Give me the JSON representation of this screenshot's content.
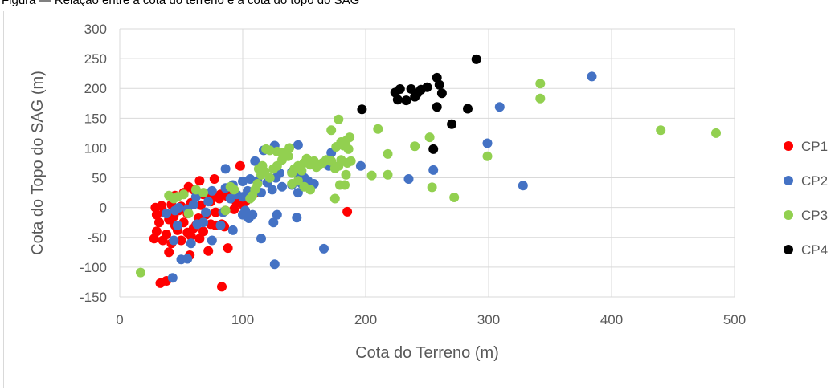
{
  "caption": "Figura — Relação entre a cota do terreno e a cota do topo do SAG",
  "chart_data": {
    "type": "scatter",
    "title": "",
    "xlabel": "Cota do Terreno (m)",
    "ylabel": "Cota do Topo do SAG (m)",
    "xlim": [
      0,
      500
    ],
    "ylim": [
      -150,
      300
    ],
    "xticks": [
      0,
      100,
      200,
      300,
      400,
      500
    ],
    "yticks": [
      -150,
      -100,
      -50,
      0,
      50,
      100,
      150,
      200,
      250,
      300
    ],
    "grid": true,
    "legend_position": "right",
    "series": [
      {
        "name": "CP1",
        "color": "#ff0000",
        "points": [
          [
            33,
            -127
          ],
          [
            38,
            -123
          ],
          [
            83,
            -133
          ],
          [
            40,
            -75
          ],
          [
            57,
            -80
          ],
          [
            72,
            -73
          ],
          [
            88,
            -68
          ],
          [
            28,
            -52
          ],
          [
            35,
            -55
          ],
          [
            42,
            -60
          ],
          [
            50,
            -55
          ],
          [
            58,
            -48
          ],
          [
            65,
            -52
          ],
          [
            78,
            -30
          ],
          [
            83,
            -28
          ],
          [
            47,
            -38
          ],
          [
            55,
            -42
          ],
          [
            38,
            -45
          ],
          [
            30,
            -40
          ],
          [
            45,
            -30
          ],
          [
            60,
            -35
          ],
          [
            68,
            -40
          ],
          [
            32,
            -25
          ],
          [
            40,
            -20
          ],
          [
            52,
            -25
          ],
          [
            62,
            -30
          ],
          [
            74,
            -28
          ],
          [
            85,
            -32
          ],
          [
            30,
            -12
          ],
          [
            36,
            -8
          ],
          [
            44,
            -15
          ],
          [
            48,
            -5
          ],
          [
            55,
            -10
          ],
          [
            64,
            -18
          ],
          [
            70,
            -12
          ],
          [
            78,
            -8
          ],
          [
            86,
            -5
          ],
          [
            93,
            -3
          ],
          [
            29,
            0
          ],
          [
            34,
            3
          ],
          [
            42,
            5
          ],
          [
            50,
            2
          ],
          [
            58,
            8
          ],
          [
            66,
            4
          ],
          [
            74,
            10
          ],
          [
            81,
            15
          ],
          [
            88,
            18
          ],
          [
            95,
            8
          ],
          [
            100,
            5
          ],
          [
            103,
            12
          ],
          [
            45,
            20
          ],
          [
            52,
            25
          ],
          [
            60,
            30
          ],
          [
            68,
            22
          ],
          [
            75,
            18
          ],
          [
            82,
            22
          ],
          [
            90,
            20
          ],
          [
            98,
            12
          ],
          [
            56,
            35
          ],
          [
            65,
            45
          ],
          [
            77,
            48
          ],
          [
            98,
            70
          ],
          [
            110,
            25
          ],
          [
            185,
            -7
          ]
        ]
      },
      {
        "name": "CP2",
        "color": "#4472c4",
        "points": [
          [
            43,
            -118
          ],
          [
            126,
            -95
          ],
          [
            166,
            -69
          ],
          [
            50,
            -87
          ],
          [
            55,
            -86
          ],
          [
            92,
            -38
          ],
          [
            75,
            -55
          ],
          [
            115,
            -52
          ],
          [
            44,
            -55
          ],
          [
            58,
            -60
          ],
          [
            47,
            -30
          ],
          [
            63,
            -28
          ],
          [
            68,
            -25
          ],
          [
            82,
            -30
          ],
          [
            105,
            -18
          ],
          [
            108,
            -12
          ],
          [
            125,
            -25
          ],
          [
            128,
            -12
          ],
          [
            144,
            -17
          ],
          [
            38,
            -10
          ],
          [
            45,
            -5
          ],
          [
            55,
            -3
          ],
          [
            70,
            -8
          ],
          [
            84,
            -8
          ],
          [
            100,
            -12
          ],
          [
            102,
            -5
          ],
          [
            48,
            0
          ],
          [
            60,
            5
          ],
          [
            72,
            10
          ],
          [
            90,
            15
          ],
          [
            95,
            22
          ],
          [
            100,
            18
          ],
          [
            104,
            28
          ],
          [
            115,
            25
          ],
          [
            124,
            30
          ],
          [
            132,
            35
          ],
          [
            140,
            38
          ],
          [
            148,
            40
          ],
          [
            158,
            40
          ],
          [
            62,
            18
          ],
          [
            75,
            28
          ],
          [
            86,
            33
          ],
          [
            92,
            38
          ],
          [
            100,
            44
          ],
          [
            106,
            48
          ],
          [
            112,
            45
          ],
          [
            120,
            42
          ],
          [
            127,
            50
          ],
          [
            130,
            58
          ],
          [
            140,
            60
          ],
          [
            145,
            55
          ],
          [
            150,
            50
          ],
          [
            153,
            45
          ],
          [
            86,
            65
          ],
          [
            110,
            78
          ],
          [
            117,
            96
          ],
          [
            126,
            104
          ],
          [
            145,
            105
          ],
          [
            145,
            25
          ],
          [
            155,
            35
          ],
          [
            170,
            70
          ],
          [
            172,
            92
          ],
          [
            196,
            70
          ],
          [
            235,
            48
          ],
          [
            255,
            63
          ],
          [
            299,
            108
          ],
          [
            309,
            169
          ],
          [
            328,
            37
          ],
          [
            384,
            220
          ]
        ]
      },
      {
        "name": "CP3",
        "color": "#92d050",
        "points": [
          [
            17,
            -109
          ],
          [
            40,
            20
          ],
          [
            44,
            15
          ],
          [
            47,
            18
          ],
          [
            52,
            22
          ],
          [
            56,
            -10
          ],
          [
            62,
            30
          ],
          [
            68,
            25
          ],
          [
            86,
            -5
          ],
          [
            90,
            35
          ],
          [
            93,
            30
          ],
          [
            106,
            15
          ],
          [
            112,
            40
          ],
          [
            115,
            55
          ],
          [
            118,
            60
          ],
          [
            122,
            50
          ],
          [
            125,
            65
          ],
          [
            128,
            70
          ],
          [
            132,
            80
          ],
          [
            135,
            90
          ],
          [
            138,
            100
          ],
          [
            108,
            20
          ],
          [
            110,
            30
          ],
          [
            113,
            65
          ],
          [
            116,
            70
          ],
          [
            119,
            98
          ],
          [
            122,
            96
          ],
          [
            128,
            94
          ],
          [
            133,
            92
          ],
          [
            137,
            86
          ],
          [
            140,
            58
          ],
          [
            142,
            65
          ],
          [
            145,
            70
          ],
          [
            148,
            62
          ],
          [
            150,
            75
          ],
          [
            152,
            82
          ],
          [
            155,
            72
          ],
          [
            158,
            78
          ],
          [
            160,
            68
          ],
          [
            140,
            40
          ],
          [
            145,
            45
          ],
          [
            150,
            35
          ],
          [
            155,
            30
          ],
          [
            162,
            72
          ],
          [
            165,
            75
          ],
          [
            168,
            80
          ],
          [
            172,
            78
          ],
          [
            175,
            66
          ],
          [
            178,
            70
          ],
          [
            180,
            80
          ],
          [
            172,
            130
          ],
          [
            178,
            148
          ],
          [
            180,
            110
          ],
          [
            184,
            112
          ],
          [
            187,
            118
          ],
          [
            176,
            102
          ],
          [
            182,
            104
          ],
          [
            186,
            98
          ],
          [
            188,
            78
          ],
          [
            185,
            75
          ],
          [
            175,
            15
          ],
          [
            179,
            38
          ],
          [
            183,
            38
          ],
          [
            184,
            55
          ],
          [
            205,
            54
          ],
          [
            210,
            132
          ],
          [
            218,
            90
          ],
          [
            218,
            55
          ],
          [
            240,
            103
          ],
          [
            252,
            118
          ],
          [
            254,
            34
          ],
          [
            272,
            17
          ],
          [
            299,
            86
          ],
          [
            342,
            183
          ],
          [
            342,
            208
          ],
          [
            440,
            130
          ],
          [
            485,
            125
          ]
        ]
      },
      {
        "name": "CP4",
        "color": "#000000",
        "points": [
          [
            197,
            165
          ],
          [
            224,
            193
          ],
          [
            226,
            181
          ],
          [
            228,
            199
          ],
          [
            233,
            180
          ],
          [
            237,
            199
          ],
          [
            240,
            186
          ],
          [
            242,
            192
          ],
          [
            245,
            198
          ],
          [
            250,
            202
          ],
          [
            255,
            98
          ],
          [
            258,
            218
          ],
          [
            258,
            169
          ],
          [
            260,
            206
          ],
          [
            262,
            192
          ],
          [
            270,
            140
          ],
          [
            283,
            166
          ],
          [
            290,
            249
          ]
        ]
      }
    ]
  }
}
